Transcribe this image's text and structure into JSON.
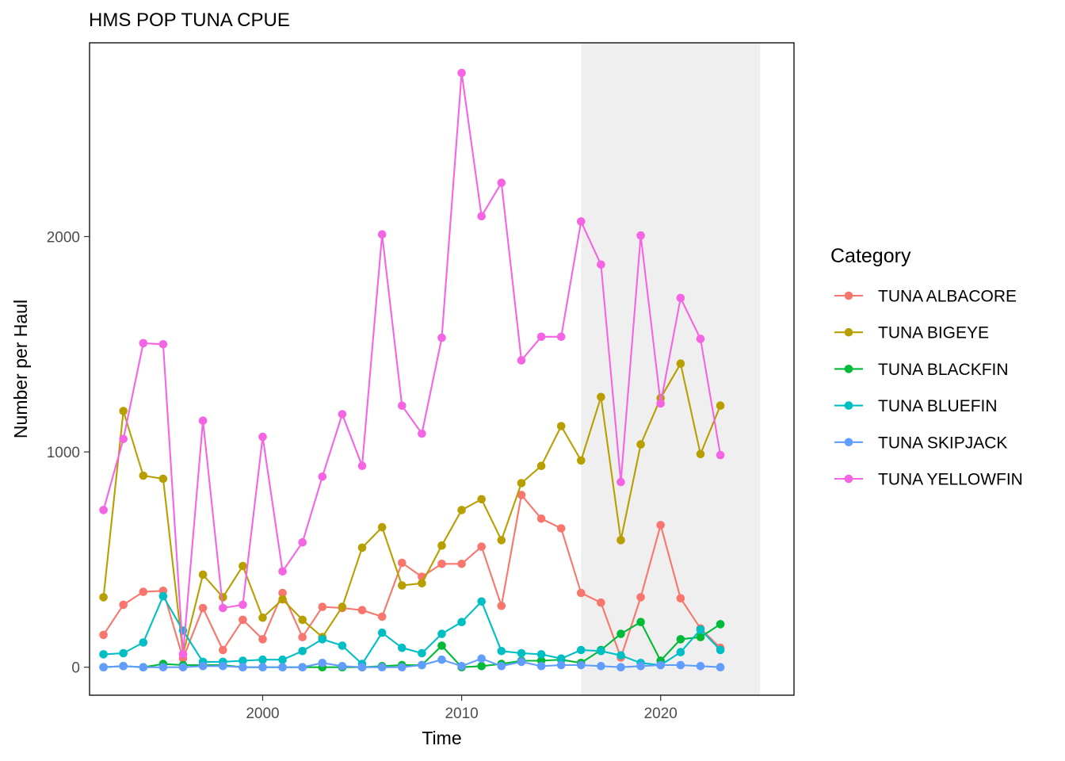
{
  "chart_data": {
    "type": "line",
    "title": "HMS POP TUNA CPUE",
    "xlabel": "Time",
    "ylabel": "Number per Haul",
    "xlim": [
      1991.3,
      2026.7
    ],
    "ylim": [
      -130,
      2900
    ],
    "xticks": [
      2000,
      2010,
      2020
    ],
    "yticks": [
      0,
      1000,
      2000
    ],
    "grid": false,
    "shaded_region": [
      2016,
      2025
    ],
    "legend": {
      "title": "Category",
      "position": "right"
    },
    "x": [
      1992,
      1993,
      1994,
      1995,
      1996,
      1997,
      1998,
      1999,
      2000,
      2001,
      2002,
      2003,
      2004,
      2005,
      2006,
      2007,
      2008,
      2009,
      2010,
      2011,
      2012,
      2013,
      2014,
      2015,
      2016,
      2017,
      2018,
      2019,
      2020,
      2021,
      2022,
      2023
    ],
    "series": [
      {
        "name": "TUNA ALBACORE",
        "color": "#F8766D",
        "values": [
          150,
          290,
          350,
          355,
          40,
          275,
          80,
          220,
          130,
          345,
          140,
          280,
          275,
          265,
          235,
          485,
          420,
          480,
          480,
          560,
          285,
          800,
          690,
          645,
          345,
          300,
          45,
          325,
          660,
          320,
          180,
          90
        ]
      },
      {
        "name": "TUNA BIGEYE",
        "color": "#B79F00",
        "values": [
          325,
          1190,
          890,
          875,
          60,
          430,
          325,
          470,
          230,
          315,
          220,
          140,
          280,
          555,
          650,
          380,
          390,
          565,
          730,
          780,
          590,
          855,
          935,
          1120,
          960,
          1255,
          590,
          1035,
          1250,
          1410,
          990,
          1215
        ]
      },
      {
        "name": "TUNA BLACKFIN",
        "color": "#00BA38",
        "values": [
          0,
          5,
          0,
          15,
          10,
          10,
          10,
          0,
          0,
          0,
          0,
          0,
          0,
          0,
          5,
          10,
          10,
          100,
          0,
          5,
          15,
          30,
          30,
          35,
          20,
          80,
          155,
          210,
          30,
          130,
          140,
          200
        ]
      },
      {
        "name": "TUNA BLUEFIN",
        "color": "#00BFC4",
        "values": [
          60,
          65,
          115,
          330,
          170,
          25,
          25,
          30,
          35,
          35,
          75,
          130,
          100,
          15,
          160,
          90,
          65,
          155,
          210,
          305,
          75,
          65,
          60,
          40,
          80,
          75,
          55,
          20,
          10,
          70,
          175,
          80
        ]
      },
      {
        "name": "TUNA SKIPJACK",
        "color": "#619CFF",
        "values": [
          0,
          5,
          0,
          0,
          0,
          5,
          5,
          0,
          0,
          0,
          0,
          20,
          5,
          0,
          0,
          0,
          10,
          35,
          5,
          40,
          5,
          25,
          5,
          10,
          10,
          5,
          0,
          5,
          10,
          10,
          5,
          0
        ]
      },
      {
        "name": "TUNA YELLOWFIN",
        "color": "#F564E3",
        "values": [
          730,
          1060,
          1505,
          1500,
          60,
          1145,
          275,
          290,
          1070,
          445,
          580,
          885,
          1175,
          935,
          2010,
          1215,
          1085,
          1530,
          2760,
          2095,
          2250,
          1425,
          1535,
          1535,
          2070,
          1870,
          860,
          2005,
          1225,
          1715,
          1525,
          985
        ]
      }
    ]
  }
}
